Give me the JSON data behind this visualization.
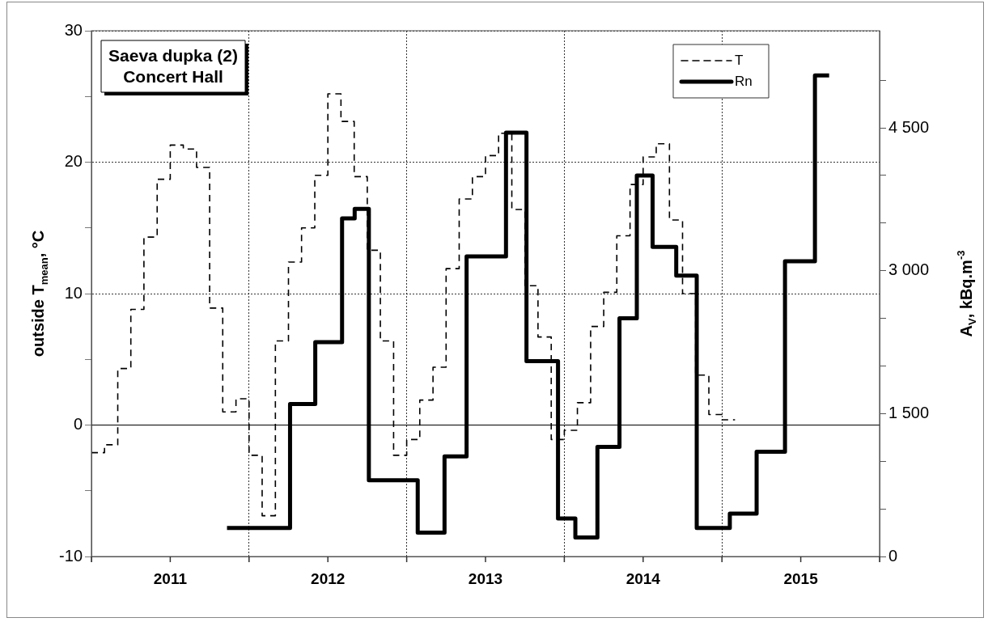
{
  "chart_data": {
    "type": "step",
    "title": "Saeva dupka (2)\nConcert Hall",
    "ylabel": "outside T$_{mean}$, °C",
    "y2label": "A$_{V}$, kBq.m$^{-3}$",
    "xlim": [
      2011,
      2016
    ],
    "xticks": [
      {
        "value": 2011,
        "label": null
      },
      {
        "value": 2011.5,
        "label": "2011"
      },
      {
        "value": 2012,
        "label": null
      },
      {
        "value": 2012.5,
        "label": "2012"
      },
      {
        "value": 2013,
        "label": null
      },
      {
        "value": 2013.5,
        "label": "2013"
      },
      {
        "value": 2014,
        "label": null
      },
      {
        "value": 2014.5,
        "label": "2014"
      },
      {
        "value": 2015,
        "label": null
      },
      {
        "value": 2015.5,
        "label": "2015"
      },
      {
        "value": 2016,
        "label": null
      }
    ],
    "ylim": [
      -10,
      30
    ],
    "yticks": [
      -10,
      {
        "value": -5,
        "label": null
      },
      0,
      {
        "value": 5,
        "label": null
      },
      10,
      {
        "value": 15,
        "label": null
      },
      20,
      {
        "value": 25,
        "label": null
      },
      30
    ],
    "y2lim": [
      0,
      5520
    ],
    "y2ticks": [
      0,
      {
        "value": 500,
        "label": null
      },
      {
        "value": 1000,
        "label": null
      },
      {
        "value": 1500,
        "label": "1 500"
      },
      {
        "value": 2000,
        "label": null
      },
      {
        "value": 2500,
        "label": null
      },
      {
        "value": 3000,
        "label": "3 000"
      },
      {
        "value": 3500,
        "label": null
      },
      {
        "value": 4000,
        "label": null
      },
      {
        "value": 4500,
        "label": "4 500"
      },
      {
        "value": 5000,
        "label": null
      }
    ],
    "grid": true,
    "legend": "top right",
    "ref_lines": [
      {
        "axis": "y",
        "value": 0,
        "color": "#000000",
        "line_style": "solid"
      }
    ],
    "series": [
      {
        "name": "T",
        "color": "#000000",
        "line_style": "dashed",
        "x": [
          2011,
          2011.083,
          2011.167,
          2011.25,
          2011.333,
          2011.417,
          2011.5,
          2011.583,
          2011.667,
          2011.75,
          2011.833,
          2011.917,
          2012,
          2012.083,
          2012.167,
          2012.25,
          2012.333,
          2012.417,
          2012.5,
          2012.583,
          2012.667,
          2012.75,
          2012.833,
          2012.917,
          2013,
          2013.083,
          2013.167,
          2013.25,
          2013.333,
          2013.417,
          2013.5,
          2013.583,
          2013.667,
          2013.75,
          2013.833,
          2013.917,
          2014,
          2014.083,
          2014.167,
          2014.25,
          2014.333,
          2014.417,
          2014.5,
          2014.583,
          2014.667,
          2014.75,
          2014.833,
          2014.917,
          2015,
          2015.083
        ],
        "values": [
          -2.1,
          -1.5,
          4.3,
          8.8,
          14.3,
          18.7,
          21.3,
          21.0,
          19.6,
          8.9,
          1.0,
          2.0,
          -2.3,
          -6.9,
          6.4,
          12.4,
          15.0,
          19.0,
          25.2,
          23.1,
          18.9,
          13.3,
          6.4,
          -2.3,
          -1.1,
          1.9,
          4.4,
          11.9,
          17.2,
          18.9,
          20.5,
          22.2,
          16.4,
          10.6,
          6.7,
          -1.1,
          -0.4,
          1.7,
          7.5,
          10.1,
          14.4,
          18.3,
          20.4,
          21.4,
          15.6,
          10.0,
          3.8,
          0.8,
          0.4,
          0.4
        ]
      },
      {
        "name": "Rn",
        "color": "#000000",
        "line_style": "solid",
        "axis": "y2",
        "x": [
          2011.86,
          2012.26,
          2012.42,
          2012.59,
          2012.67,
          2012.76,
          2013.07,
          2013.24,
          2013.38,
          2013.63,
          2013.76,
          2013.96,
          2014.07,
          2014.21,
          2014.35,
          2014.46,
          2014.56,
          2014.71,
          2014.84,
          2015.05,
          2015.22,
          2015.4,
          2015.59,
          2015.68
        ],
        "values": [
          300,
          1600,
          2250,
          3550,
          3650,
          800,
          250,
          1050,
          3150,
          4450,
          2050,
          400,
          200,
          1150,
          2500,
          4000,
          3250,
          2950,
          300,
          450,
          1100,
          3100,
          5050,
          5050
        ]
      }
    ]
  }
}
